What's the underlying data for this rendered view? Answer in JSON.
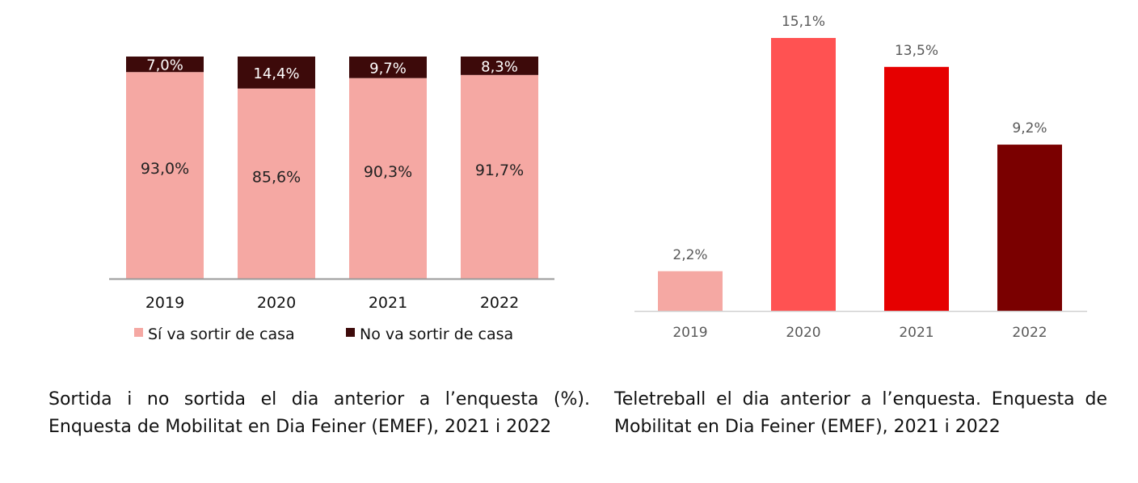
{
  "chart_data": [
    {
      "type": "bar",
      "stacked": true,
      "categories": [
        "2019",
        "2020",
        "2021",
        "2022"
      ],
      "series": [
        {
          "name": "Sí  va sortir de casa",
          "values": [
            93.0,
            85.6,
            90.3,
            91.7
          ],
          "labels": [
            "93,0%",
            "85,6%",
            "90,3%",
            "91,7%"
          ],
          "color": "#F5A8A3"
        },
        {
          "name": "No va sortir de casa",
          "values": [
            7.0,
            14.4,
            9.7,
            8.3
          ],
          "labels": [
            "7,0%",
            "14,4%",
            "9,7%",
            "8,3%"
          ],
          "color": "#3D0A0A"
        }
      ],
      "ylim": [
        0,
        100
      ],
      "grid": false,
      "legend_position": "bottom",
      "caption": [
        "Sortida i no sortida el dia anterior a l’enquesta (%).",
        "Enquesta de Mobilitat en Dia Feiner (EMEF), 2021 i 2022"
      ]
    },
    {
      "type": "bar",
      "categories": [
        "2019",
        "2020",
        "2021",
        "2022"
      ],
      "values": [
        2.2,
        15.1,
        13.5,
        9.2
      ],
      "labels": [
        "2,2%",
        "15,1%",
        "13,5%",
        "9,2%"
      ],
      "colors": [
        "#F5A8A3",
        "#FF5252",
        "#E60000",
        "#7A0000"
      ],
      "ylim": [
        0,
        15.1
      ],
      "grid": false,
      "caption": [
        "Teletreball el dia anterior a l’enquesta. Enquesta de",
        "Mobilitat en Dia Feiner (EMEF), 2021 i 2022"
      ]
    }
  ]
}
